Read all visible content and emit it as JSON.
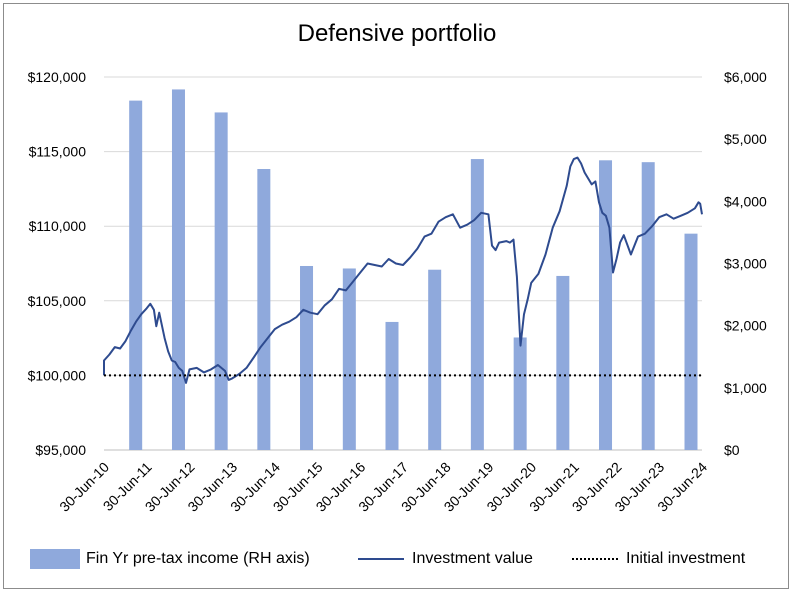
{
  "colors": {
    "bar": "#8fa9dc",
    "line": "#2e4b8f",
    "initial": "#000000",
    "grid": "#d9d9d9"
  },
  "chart_data": {
    "type": "bar",
    "title": "Defensive portfolio",
    "x_ticks": [
      "30-Jun-10",
      "30-Jun-11",
      "30-Jun-12",
      "30-Jun-13",
      "30-Jun-14",
      "30-Jun-15",
      "30-Jun-16",
      "30-Jun-17",
      "30-Jun-18",
      "30-Jun-19",
      "30-Jun-20",
      "30-Jun-21",
      "30-Jun-22",
      "30-Jun-23",
      "30-Jun-24"
    ],
    "y_left": {
      "lim": [
        95000,
        120000
      ],
      "ticks": [
        "$95,000",
        "$100,000",
        "$105,000",
        "$110,000",
        "$115,000",
        "$120,000"
      ]
    },
    "y_right": {
      "lim": [
        0,
        6000
      ],
      "ticks": [
        "$0",
        "$1,000",
        "$2,000",
        "$3,000",
        "$4,000",
        "$5,000",
        "$6,000"
      ]
    },
    "grid": true,
    "legend_position": "bottom",
    "series": [
      {
        "name": "Fin Yr pre-tax income (RH axis)",
        "type": "bar",
        "axis": "right",
        "x": [
          "30-Jun-11",
          "30-Jun-12",
          "30-Jun-13",
          "30-Jun-14",
          "30-Jun-15",
          "30-Jun-16",
          "30-Jun-17",
          "30-Jun-18",
          "30-Jun-19",
          "30-Jun-20",
          "30-Jun-21",
          "30-Jun-22",
          "30-Jun-23",
          "30-Jun-24"
        ],
        "values": [
          5620,
          5800,
          5430,
          4520,
          2960,
          2920,
          2060,
          2900,
          4680,
          1810,
          2800,
          4660,
          4630,
          3480
        ]
      },
      {
        "name": "Investment value",
        "type": "line",
        "axis": "left",
        "points": [
          [
            "30-Jun-10",
            100000
          ],
          [
            "30-Jun-10",
            101000
          ],
          [
            "15-Aug-10",
            101400
          ],
          [
            "30-Sep-10",
            101900
          ],
          [
            "15-Nov-10",
            101800
          ],
          [
            "31-Dec-10",
            102300
          ],
          [
            "15-Feb-11",
            103000
          ],
          [
            "31-Mar-11",
            103600
          ],
          [
            "15-May-11",
            104100
          ],
          [
            "30-Jun-11",
            104500
          ],
          [
            "31-Jul-11",
            104800
          ],
          [
            "31-Aug-11",
            104400
          ],
          [
            "20-Sep-11",
            103300
          ],
          [
            "15-Oct-11",
            104200
          ],
          [
            "30-Nov-11",
            102500
          ],
          [
            "31-Dec-11",
            101600
          ],
          [
            "31-Jan-12",
            101000
          ],
          [
            "29-Feb-12",
            100900
          ],
          [
            "31-Mar-12",
            100500
          ],
          [
            "30-Apr-12",
            100300
          ],
          [
            "31-May-12",
            99500
          ],
          [
            "30-Jun-12",
            100400
          ],
          [
            "31-Aug-12",
            100500
          ],
          [
            "31-Oct-12",
            100200
          ],
          [
            "31-Dec-12",
            100400
          ],
          [
            "28-Feb-13",
            100700
          ],
          [
            "30-Apr-13",
            100300
          ],
          [
            "31-May-13",
            99700
          ],
          [
            "30-Jun-13",
            99800
          ],
          [
            "31-Aug-13",
            100100
          ],
          [
            "31-Oct-13",
            100500
          ],
          [
            "31-Dec-13",
            101200
          ],
          [
            "28-Feb-14",
            101900
          ],
          [
            "30-Apr-14",
            102500
          ],
          [
            "30-Jun-14",
            103100
          ],
          [
            "31-Aug-14",
            103400
          ],
          [
            "31-Oct-14",
            103600
          ],
          [
            "31-Dec-14",
            103900
          ],
          [
            "28-Feb-15",
            104400
          ],
          [
            "30-Apr-15",
            104200
          ],
          [
            "30-Jun-15",
            104100
          ],
          [
            "31-Aug-15",
            104700
          ],
          [
            "31-Oct-15",
            105100
          ],
          [
            "31-Dec-15",
            105800
          ],
          [
            "28-Feb-16",
            105700
          ],
          [
            "30-Apr-16",
            106300
          ],
          [
            "30-Jun-16",
            106900
          ],
          [
            "31-Aug-16",
            107500
          ],
          [
            "31-Oct-16",
            107400
          ],
          [
            "31-Dec-16",
            107300
          ],
          [
            "28-Feb-17",
            107800
          ],
          [
            "30-Apr-17",
            107500
          ],
          [
            "30-Jun-17",
            107400
          ],
          [
            "31-Aug-17",
            107900
          ],
          [
            "31-Oct-17",
            108500
          ],
          [
            "31-Dec-17",
            109300
          ],
          [
            "28-Feb-18",
            109500
          ],
          [
            "30-Apr-18",
            110300
          ],
          [
            "30-Jun-18",
            110600
          ],
          [
            "31-Aug-18",
            110800
          ],
          [
            "31-Oct-18",
            109900
          ],
          [
            "31-Dec-18",
            110100
          ],
          [
            "28-Feb-19",
            110400
          ],
          [
            "30-Apr-19",
            110900
          ],
          [
            "30-Jun-19",
            110800
          ],
          [
            "31-Jul-19",
            108700
          ],
          [
            "31-Aug-19",
            108400
          ],
          [
            "30-Sep-19",
            108900
          ],
          [
            "30-Nov-19",
            109000
          ],
          [
            "31-Dec-19",
            108900
          ],
          [
            "31-Jan-20",
            109100
          ],
          [
            "29-Feb-20",
            106600
          ],
          [
            "31-Mar-20",
            102000
          ],
          [
            "30-Apr-20",
            104100
          ],
          [
            "31-May-20",
            105100
          ],
          [
            "30-Jun-20",
            106200
          ],
          [
            "31-Aug-20",
            106800
          ],
          [
            "31-Oct-20",
            108100
          ],
          [
            "31-Dec-20",
            109900
          ],
          [
            "28-Feb-21",
            111000
          ],
          [
            "30-Apr-21",
            112700
          ],
          [
            "31-May-21",
            114000
          ],
          [
            "30-Jun-21",
            114500
          ],
          [
            "31-Jul-21",
            114600
          ],
          [
            "31-Aug-21",
            114200
          ],
          [
            "30-Sep-21",
            113600
          ],
          [
            "31-Oct-21",
            113200
          ],
          [
            "30-Nov-21",
            112800
          ],
          [
            "31-Dec-21",
            113000
          ],
          [
            "31-Jan-22",
            111600
          ],
          [
            "28-Feb-22",
            110900
          ],
          [
            "31-Mar-22",
            110700
          ],
          [
            "30-Apr-22",
            109900
          ],
          [
            "31-May-22",
            106900
          ],
          [
            "30-Jun-22",
            107800
          ],
          [
            "31-Jul-22",
            108900
          ],
          [
            "31-Aug-22",
            109400
          ],
          [
            "31-Oct-22",
            108100
          ],
          [
            "31-Dec-22",
            109300
          ],
          [
            "28-Feb-23",
            109500
          ],
          [
            "30-Apr-23",
            110000
          ],
          [
            "30-Jun-23",
            110600
          ],
          [
            "31-Aug-23",
            110800
          ],
          [
            "31-Oct-23",
            110500
          ],
          [
            "31-Dec-23",
            110700
          ],
          [
            "29-Feb-24",
            110900
          ],
          [
            "30-Apr-24",
            111200
          ],
          [
            "31-May-24",
            111600
          ],
          [
            "15-Jun-24",
            111500
          ],
          [
            "30-Jun-24",
            110800
          ]
        ]
      },
      {
        "name": "Initial investment",
        "type": "line",
        "axis": "left",
        "values": [
          100000,
          100000
        ]
      }
    ]
  }
}
